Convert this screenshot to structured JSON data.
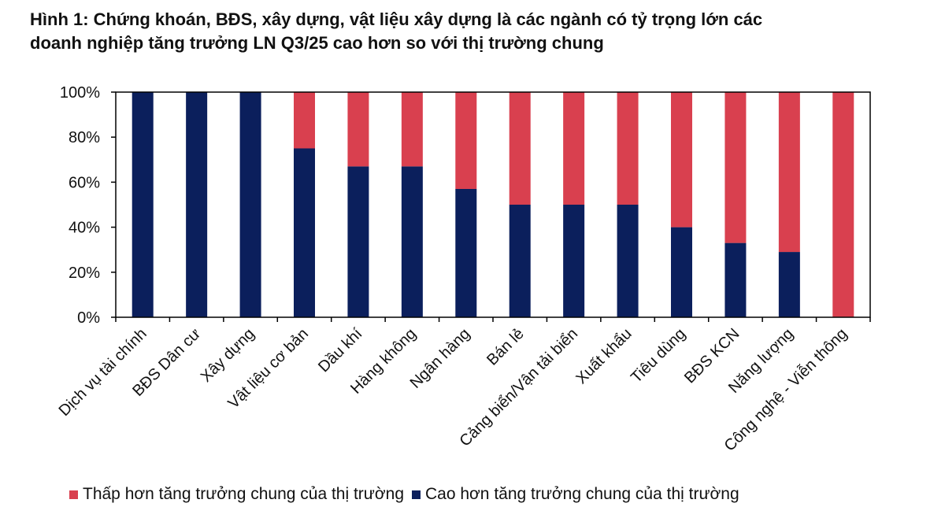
{
  "title_line1": "Hình 1: Chứng khoán, BĐS, xây dựng, vật liệu xây dựng là các ngành có tỷ trọng lớn các",
  "title_line2": "doanh nghiệp tăng trưởng LN Q3/25 cao hơn so với thị trường chung",
  "colors": {
    "lower": "#d9404f",
    "higher": "#0b1f5c"
  },
  "chart_data": {
    "type": "bar",
    "stacked": true,
    "categories": [
      "Dịch vụ tài chính",
      "BĐS Dân cư",
      "Xây dựng",
      "Vật liệu cơ bản",
      "Dầu khí",
      "Hàng không",
      "Ngân hàng",
      "Bán lẻ",
      "Cảng biển/Vận tải biển",
      "Xuất khẩu",
      "Tiêu dùng",
      "BĐS KCN",
      "Năng lượng",
      "Công nghệ - Viễn thông"
    ],
    "series": [
      {
        "name": "Cao hơn tăng trưởng chung của thị trường",
        "values": [
          100,
          100,
          100,
          75,
          67,
          67,
          57,
          50,
          50,
          50,
          40,
          33,
          29,
          0
        ]
      },
      {
        "name": "Thấp hơn tăng trưởng chung của thị trường",
        "values": [
          0,
          0,
          0,
          25,
          33,
          33,
          43,
          50,
          50,
          50,
          60,
          67,
          71,
          100
        ]
      }
    ],
    "yticks": [
      "0%",
      "20%",
      "40%",
      "60%",
      "80%",
      "100%"
    ],
    "ylim": [
      0,
      100
    ],
    "grid": false,
    "legend_position": "bottom"
  }
}
